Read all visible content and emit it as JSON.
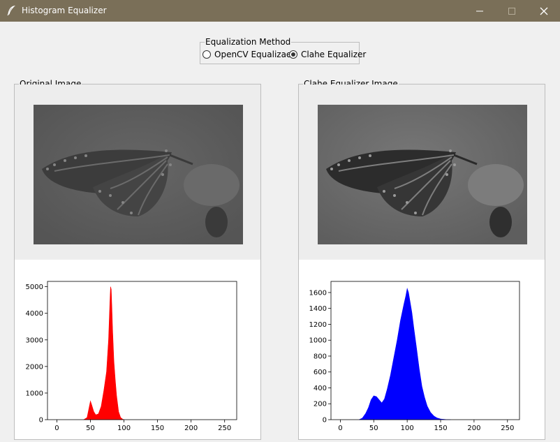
{
  "window": {
    "title": "Histogram Equalizer",
    "icons": [
      "feather-icon",
      "minimize-icon",
      "maximize-icon",
      "close-icon"
    ]
  },
  "method": {
    "label": "Equalization Method",
    "options": [
      {
        "label": "OpenCV Equalizaer",
        "selected": false
      },
      {
        "label": "Clahe Equalizer",
        "selected": true
      }
    ]
  },
  "left": {
    "label": "Original Image",
    "chart_data": {
      "type": "area",
      "color": "#ff0000",
      "xlim": [
        -14,
        268
      ],
      "ylim": [
        0,
        5200
      ],
      "x_ticks": [
        0,
        50,
        100,
        150,
        200,
        250
      ],
      "y_ticks": [
        0,
        1000,
        2000,
        3000,
        4000,
        5000
      ],
      "x": [
        40,
        45,
        48,
        50,
        52,
        55,
        58,
        62,
        66,
        70,
        74,
        77,
        79,
        80,
        81,
        82,
        83,
        85,
        87,
        89,
        92,
        95,
        98,
        100
      ],
      "values": [
        0,
        80,
        450,
        700,
        550,
        300,
        180,
        220,
        500,
        1100,
        1800,
        3000,
        4400,
        5000,
        4900,
        4200,
        3400,
        2200,
        1500,
        900,
        300,
        80,
        20,
        0
      ]
    }
  },
  "right": {
    "label": "Clahe Equalizer Image",
    "chart_data": {
      "type": "area",
      "color": "#0000ff",
      "xlim": [
        -14,
        268
      ],
      "ylim": [
        0,
        1740
      ],
      "x_ticks": [
        0,
        50,
        100,
        150,
        200,
        250
      ],
      "y_ticks": [
        0,
        200,
        400,
        600,
        800,
        1000,
        1200,
        1400,
        1600
      ],
      "x": [
        28,
        33,
        38,
        42,
        46,
        50,
        54,
        58,
        62,
        66,
        70,
        75,
        80,
        85,
        90,
        95,
        98,
        100,
        102,
        104,
        107,
        110,
        114,
        118,
        122,
        126,
        130,
        135,
        140,
        145,
        150,
        158,
        165
      ],
      "values": [
        0,
        20,
        80,
        150,
        250,
        300,
        290,
        250,
        210,
        260,
        380,
        560,
        780,
        1000,
        1250,
        1450,
        1560,
        1650,
        1600,
        1500,
        1350,
        1150,
        900,
        640,
        420,
        280,
        170,
        90,
        45,
        20,
        8,
        2,
        0
      ]
    }
  }
}
